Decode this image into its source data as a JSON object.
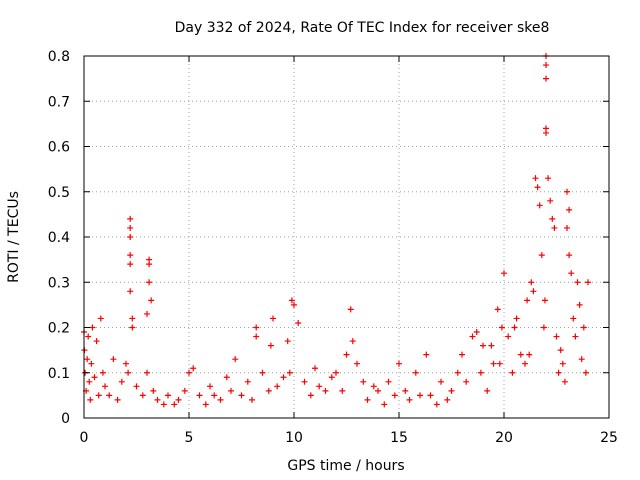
{
  "chart_data": {
    "type": "scatter",
    "title": "Day 332 of 2024, Rate Of TEC Index for receiver ske8",
    "xlabel": "GPS time / hours",
    "ylabel": "ROTI / TECUs",
    "xlim": [
      0,
      25
    ],
    "ylim": [
      0,
      0.8
    ],
    "xticks": [
      "0",
      "5",
      "10",
      "15",
      "20",
      "25"
    ],
    "yticks": [
      "0",
      "0.1",
      "0.2",
      "0.3",
      "0.4",
      "0.5",
      "0.6",
      "0.7",
      "0.8"
    ],
    "grid": true,
    "legend": "none",
    "marker": "plus",
    "color": "#ff0000",
    "series": [
      {
        "x": [
          0.0,
          0.02,
          0.05,
          0.1,
          0.15,
          0.2,
          0.25,
          0.3,
          0.35,
          0.4,
          0.5,
          0.6,
          0.7,
          0.8,
          0.9,
          1.0,
          1.2,
          1.4,
          1.6,
          1.8,
          2.0,
          2.1,
          2.2,
          2.2,
          2.2,
          2.2,
          2.2,
          2.2,
          2.3,
          2.3,
          2.5,
          2.8,
          3.0,
          3.0,
          3.1,
          3.1,
          3.1,
          3.2,
          3.3,
          3.5,
          3.8,
          4.0,
          4.3,
          4.5,
          4.8,
          5.0,
          5.2,
          5.5,
          5.8,
          6.0,
          6.2,
          6.5,
          6.8,
          7.0,
          7.2,
          7.5,
          7.8,
          8.0,
          8.2,
          8.2,
          8.5,
          8.8,
          8.9,
          9.0,
          9.2,
          9.5,
          9.7,
          9.8,
          9.9,
          10.0,
          10.2,
          10.5,
          10.8,
          11.0,
          11.2,
          11.5,
          11.8,
          12.0,
          12.3,
          12.5,
          12.7,
          12.8,
          13.0,
          13.3,
          13.5,
          13.8,
          14.0,
          14.3,
          14.5,
          14.8,
          15.0,
          15.3,
          15.5,
          15.8,
          16.0,
          16.3,
          16.5,
          16.8,
          17.0,
          17.3,
          17.5,
          17.8,
          18.0,
          18.2,
          18.5,
          18.7,
          18.9,
          19.0,
          19.2,
          19.4,
          19.5,
          19.7,
          19.8,
          19.9,
          20.0,
          20.2,
          20.4,
          20.5,
          20.6,
          20.8,
          21.0,
          21.1,
          21.2,
          21.3,
          21.4,
          21.5,
          21.6,
          21.7,
          21.8,
          21.9,
          21.95,
          22.0,
          22.0,
          22.0,
          22.0,
          22.0,
          22.1,
          22.2,
          22.3,
          22.4,
          22.5,
          22.6,
          22.7,
          22.8,
          22.9,
          23.0,
          23.0,
          23.1,
          23.1,
          23.2,
          23.3,
          23.4,
          23.5,
          23.6,
          23.7,
          23.8,
          23.9,
          24.0
        ],
        "y": [
          0.19,
          0.15,
          0.1,
          0.06,
          0.13,
          0.18,
          0.08,
          0.04,
          0.12,
          0.2,
          0.09,
          0.17,
          0.05,
          0.22,
          0.1,
          0.07,
          0.05,
          0.13,
          0.04,
          0.08,
          0.12,
          0.1,
          0.44,
          0.42,
          0.4,
          0.36,
          0.34,
          0.28,
          0.2,
          0.22,
          0.07,
          0.05,
          0.1,
          0.23,
          0.35,
          0.34,
          0.3,
          0.26,
          0.06,
          0.04,
          0.03,
          0.05,
          0.03,
          0.04,
          0.06,
          0.1,
          0.11,
          0.05,
          0.03,
          0.07,
          0.05,
          0.04,
          0.09,
          0.06,
          0.13,
          0.05,
          0.08,
          0.04,
          0.2,
          0.18,
          0.1,
          0.06,
          0.16,
          0.22,
          0.07,
          0.09,
          0.17,
          0.1,
          0.26,
          0.25,
          0.21,
          0.08,
          0.05,
          0.11,
          0.07,
          0.06,
          0.09,
          0.1,
          0.06,
          0.14,
          0.24,
          0.17,
          0.12,
          0.08,
          0.04,
          0.07,
          0.06,
          0.03,
          0.08,
          0.05,
          0.12,
          0.06,
          0.04,
          0.1,
          0.05,
          0.14,
          0.05,
          0.03,
          0.08,
          0.04,
          0.06,
          0.1,
          0.14,
          0.08,
          0.18,
          0.19,
          0.1,
          0.16,
          0.06,
          0.16,
          0.12,
          0.24,
          0.12,
          0.2,
          0.32,
          0.18,
          0.1,
          0.2,
          0.22,
          0.14,
          0.12,
          0.26,
          0.14,
          0.3,
          0.28,
          0.53,
          0.51,
          0.47,
          0.36,
          0.2,
          0.26,
          0.8,
          0.78,
          0.75,
          0.64,
          0.63,
          0.53,
          0.48,
          0.44,
          0.42,
          0.18,
          0.1,
          0.15,
          0.12,
          0.08,
          0.42,
          0.5,
          0.46,
          0.36,
          0.32,
          0.22,
          0.18,
          0.3,
          0.25,
          0.13,
          0.2,
          0.1,
          0.3
        ]
      }
    ]
  }
}
